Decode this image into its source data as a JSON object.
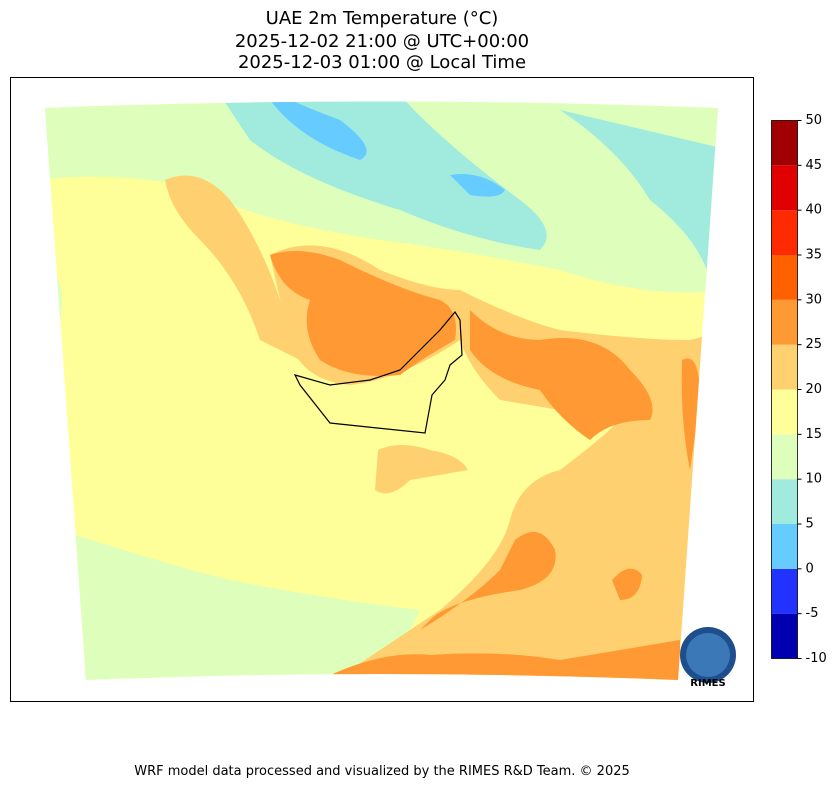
{
  "title": [
    "UAE 2m Temperature (°C)",
    "2025-12-02 21:00 @ UTC+00:00",
    "2025-12-03 01:00 @ Local Time"
  ],
  "colorbar": {
    "ticks": [
      -10,
      -5,
      0,
      5,
      10,
      15,
      20,
      25,
      30,
      35,
      40,
      45,
      50
    ],
    "colors": [
      "#0000b0",
      "#2233ff",
      "#66ccff",
      "#a0ebdd",
      "#ddffbb",
      "#ffff99",
      "#ffd070",
      "#ff9933",
      "#ff6000",
      "#ff2a00",
      "#e00000",
      "#a00000"
    ]
  },
  "logo": "RIMES",
  "footer": "WRF model data processed and visualized by the RIMES R&D Team. © 2025"
}
